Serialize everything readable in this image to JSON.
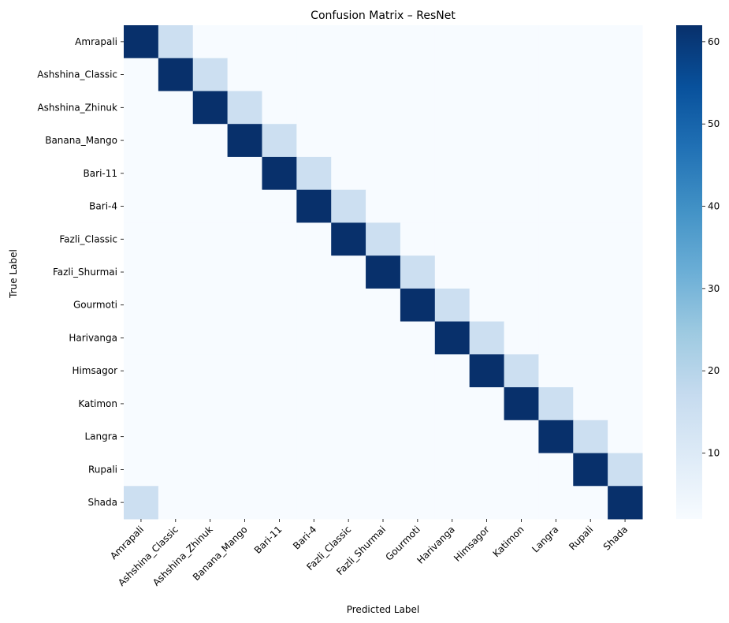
{
  "chart_data": {
    "type": "heatmap",
    "title": "Confusion Matrix – ResNet",
    "xlabel": "Predicted Label",
    "ylabel": "True Label",
    "x_categories": [
      "Amrapali",
      "Ashshina_Classic",
      "Ashshina_Zhinuk",
      "Banana_Mango",
      "Bari-11",
      "Bari-4",
      "Fazli_Classic",
      "Fazli_Shurmai",
      "Gourmoti",
      "Harivanga",
      "Himsagor",
      "Katimon",
      "Langra",
      "Rupali",
      "Shada"
    ],
    "y_categories": [
      "Amrapali",
      "Ashshina_Classic",
      "Ashshina_Zhinuk",
      "Banana_Mango",
      "Bari-11",
      "Bari-4",
      "Fazli_Classic",
      "Fazli_Shurmai",
      "Gourmoti",
      "Harivanga",
      "Himsagor",
      "Katimon",
      "Langra",
      "Rupali",
      "Shada"
    ],
    "matrix": [
      [
        62,
        15,
        2,
        2,
        2,
        2,
        2,
        2,
        2,
        2,
        2,
        2,
        2,
        2,
        2
      ],
      [
        2,
        62,
        15,
        2,
        2,
        2,
        2,
        2,
        2,
        2,
        2,
        2,
        2,
        2,
        2
      ],
      [
        2,
        2,
        62,
        15,
        2,
        2,
        2,
        2,
        2,
        2,
        2,
        2,
        2,
        2,
        2
      ],
      [
        2,
        2,
        2,
        62,
        15,
        2,
        2,
        2,
        2,
        2,
        2,
        2,
        2,
        2,
        2
      ],
      [
        2,
        2,
        2,
        2,
        62,
        15,
        2,
        2,
        2,
        2,
        2,
        2,
        2,
        2,
        2
      ],
      [
        2,
        2,
        2,
        2,
        2,
        62,
        15,
        2,
        2,
        2,
        2,
        2,
        2,
        2,
        2
      ],
      [
        2,
        2,
        2,
        2,
        2,
        2,
        62,
        15,
        2,
        2,
        2,
        2,
        2,
        2,
        2
      ],
      [
        2,
        2,
        2,
        2,
        2,
        2,
        2,
        62,
        15,
        2,
        2,
        2,
        2,
        2,
        2
      ],
      [
        2,
        2,
        2,
        2,
        2,
        2,
        2,
        2,
        62,
        15,
        2,
        2,
        2,
        2,
        2
      ],
      [
        2,
        2,
        2,
        2,
        2,
        2,
        2,
        2,
        2,
        62,
        15,
        2,
        2,
        2,
        2
      ],
      [
        2,
        2,
        2,
        2,
        2,
        2,
        2,
        2,
        2,
        2,
        62,
        15,
        2,
        2,
        2
      ],
      [
        2,
        2,
        2,
        2,
        2,
        2,
        2,
        2,
        2,
        2,
        2,
        62,
        15,
        2,
        2
      ],
      [
        2,
        2,
        2,
        2,
        2,
        2,
        2,
        2,
        2,
        2,
        2,
        2,
        62,
        15,
        2
      ],
      [
        2,
        2,
        2,
        2,
        2,
        2,
        2,
        2,
        2,
        2,
        2,
        2,
        2,
        62,
        15
      ],
      [
        15,
        2,
        2,
        2,
        2,
        2,
        2,
        2,
        2,
        2,
        2,
        2,
        2,
        2,
        62
      ]
    ],
    "colorbar": {
      "colormap": "Blues",
      "range": [
        2,
        62
      ],
      "ticks": [
        10,
        20,
        30,
        40,
        50,
        60
      ],
      "tick_labels": [
        "10",
        "20",
        "30",
        "40",
        "50",
        "60"
      ]
    },
    "grid": false
  }
}
